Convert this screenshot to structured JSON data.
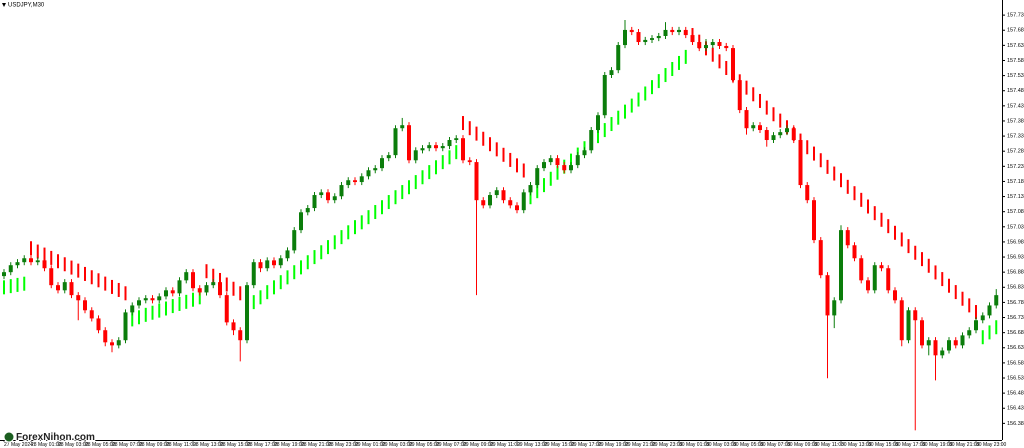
{
  "chart_data": {
    "type": "candlestick",
    "title": "USDJPY,M30",
    "watermark": "ForexNihon.com",
    "up_color": "#0b7d0b",
    "down_color": "#ff0000",
    "ylim": [
      156.33,
      157.785
    ],
    "yticks": [
      157.735,
      157.685,
      157.635,
      157.585,
      157.535,
      157.485,
      157.435,
      157.385,
      157.335,
      157.285,
      157.235,
      157.185,
      157.135,
      157.085,
      157.035,
      156.985,
      156.935,
      156.885,
      156.835,
      156.785,
      156.735,
      156.685,
      156.635,
      156.585,
      156.535,
      156.485,
      156.435,
      156.385
    ],
    "time_labels": [
      "27 May 2024",
      "28 May 01:00",
      "28 May 03:00",
      "28 May 05:00",
      "28 May 07:00",
      "28 May 09:00",
      "28 May 11:00",
      "28 May 13:00",
      "28 May 15:00",
      "28 May 17:00",
      "28 May 19:00",
      "28 May 21:00",
      "28 May 23:00",
      "29 May 01:00",
      "29 May 03:00",
      "29 May 05:00",
      "29 May 07:00",
      "29 May 09:00",
      "29 May 11:00",
      "29 May 13:00",
      "29 May 15:00",
      "29 May 17:00",
      "29 May 19:00",
      "29 May 21:00",
      "29 May 23:00",
      "30 May 01:00",
      "30 May 03:00",
      "30 May 05:00",
      "30 May 07:00",
      "30 May 09:00",
      "30 May 11:00",
      "30 May 13:00",
      "30 May 15:00",
      "30 May 17:00",
      "30 May 19:00",
      "30 May 21:00",
      "30 May 23:00"
    ],
    "ohlc": [
      [
        156.872,
        156.895,
        156.862,
        156.885
      ],
      [
        156.885,
        156.918,
        156.875,
        156.908
      ],
      [
        156.908,
        156.928,
        156.898,
        156.918
      ],
      [
        156.918,
        156.941,
        156.908,
        156.931
      ],
      [
        156.931,
        156.941,
        156.908,
        156.918
      ],
      [
        156.918,
        156.934,
        156.908,
        156.924
      ],
      [
        156.924,
        156.934,
        156.888,
        156.898
      ],
      [
        156.898,
        156.908,
        156.832,
        156.842
      ],
      [
        156.842,
        156.852,
        156.815,
        156.825
      ],
      [
        156.825,
        156.862,
        156.815,
        156.852
      ],
      [
        156.852,
        156.862,
        156.799,
        156.809
      ],
      [
        156.809,
        156.819,
        156.726,
        156.792
      ],
      [
        156.792,
        156.802,
        156.749,
        156.759
      ],
      [
        156.759,
        156.769,
        156.722,
        156.732
      ],
      [
        156.732,
        156.742,
        156.683,
        156.693
      ],
      [
        156.693,
        156.703,
        156.64,
        156.653
      ],
      [
        156.653,
        156.663,
        156.62,
        156.643
      ],
      [
        156.643,
        156.67,
        156.633,
        156.66
      ],
      [
        156.66,
        156.762,
        156.65,
        156.752
      ],
      [
        156.752,
        156.785,
        156.742,
        156.775
      ],
      [
        156.775,
        156.802,
        156.765,
        156.792
      ],
      [
        156.792,
        156.809,
        156.782,
        156.799
      ],
      [
        156.799,
        156.809,
        156.782,
        156.792
      ],
      [
        156.792,
        156.815,
        156.782,
        156.805
      ],
      [
        156.805,
        156.835,
        156.795,
        156.825
      ],
      [
        156.825,
        156.835,
        156.805,
        156.815
      ],
      [
        156.815,
        156.868,
        156.805,
        156.858
      ],
      [
        156.858,
        156.895,
        156.848,
        156.885
      ],
      [
        156.885,
        156.895,
        156.822,
        156.832
      ],
      [
        156.832,
        156.842,
        156.808,
        156.818
      ],
      [
        156.818,
        156.852,
        156.808,
        156.842
      ],
      [
        156.842,
        156.862,
        156.832,
        156.852
      ],
      [
        156.852,
        156.862,
        156.799,
        156.809
      ],
      [
        156.809,
        156.819,
        156.709,
        156.719
      ],
      [
        156.719,
        156.729,
        156.677,
        156.693
      ],
      [
        156.693,
        156.703,
        156.59,
        156.66
      ],
      [
        156.66,
        156.852,
        156.65,
        156.842
      ],
      [
        156.842,
        156.928,
        156.832,
        156.918
      ],
      [
        156.918,
        156.928,
        156.885,
        156.898
      ],
      [
        156.898,
        156.934,
        156.888,
        156.924
      ],
      [
        156.924,
        156.934,
        156.898,
        156.908
      ],
      [
        156.908,
        156.941,
        156.898,
        156.931
      ],
      [
        156.931,
        156.967,
        156.921,
        156.957
      ],
      [
        156.957,
        157.034,
        156.947,
        157.024
      ],
      [
        157.024,
        157.093,
        157.014,
        157.083
      ],
      [
        157.083,
        157.107,
        157.073,
        157.097
      ],
      [
        157.097,
        157.15,
        157.087,
        157.14
      ],
      [
        157.14,
        157.159,
        157.13,
        157.149
      ],
      [
        157.149,
        157.159,
        157.113,
        157.123
      ],
      [
        157.123,
        157.146,
        157.113,
        157.136
      ],
      [
        157.136,
        157.183,
        157.126,
        157.173
      ],
      [
        157.173,
        157.199,
        157.163,
        157.189
      ],
      [
        157.189,
        157.199,
        157.173,
        157.183
      ],
      [
        157.183,
        157.212,
        157.173,
        157.202
      ],
      [
        157.202,
        157.232,
        157.192,
        157.222
      ],
      [
        157.222,
        157.239,
        157.212,
        157.229
      ],
      [
        157.229,
        157.272,
        157.219,
        157.262
      ],
      [
        157.262,
        157.282,
        157.252,
        157.272
      ],
      [
        157.272,
        157.371,
        157.262,
        157.361
      ],
      [
        157.361,
        157.395,
        157.351,
        157.371
      ],
      [
        157.371,
        157.381,
        157.245,
        157.255
      ],
      [
        157.255,
        157.298,
        157.245,
        157.288
      ],
      [
        157.288,
        157.305,
        157.278,
        157.295
      ],
      [
        157.295,
        157.315,
        157.285,
        157.305
      ],
      [
        157.305,
        157.315,
        157.285,
        157.295
      ],
      [
        157.295,
        157.312,
        157.285,
        157.302
      ],
      [
        157.302,
        157.332,
        157.292,
        157.322
      ],
      [
        157.322,
        157.338,
        157.312,
        157.328
      ],
      [
        157.328,
        157.338,
        157.245,
        157.255
      ],
      [
        157.255,
        157.265,
        157.239,
        157.249
      ],
      [
        157.249,
        157.259,
        156.809,
        157.123
      ],
      [
        157.123,
        157.133,
        157.096,
        157.106
      ],
      [
        157.106,
        157.15,
        157.096,
        157.14
      ],
      [
        157.14,
        157.166,
        157.13,
        157.156
      ],
      [
        157.156,
        157.166,
        157.113,
        157.123
      ],
      [
        157.123,
        157.133,
        157.096,
        157.106
      ],
      [
        157.106,
        157.116,
        157.08,
        157.09
      ],
      [
        157.09,
        157.159,
        157.08,
        157.149
      ],
      [
        157.149,
        157.183,
        157.139,
        157.173
      ],
      [
        157.173,
        157.239,
        157.163,
        157.229
      ],
      [
        157.229,
        157.259,
        157.219,
        157.249
      ],
      [
        157.249,
        157.272,
        157.239,
        157.262
      ],
      [
        157.262,
        157.272,
        157.229,
        157.239
      ],
      [
        157.239,
        157.249,
        157.212,
        157.222
      ],
      [
        157.222,
        157.249,
        157.212,
        157.239
      ],
      [
        157.239,
        157.282,
        157.229,
        157.272
      ],
      [
        157.272,
        157.298,
        157.262,
        157.288
      ],
      [
        157.288,
        157.365,
        157.278,
        157.355
      ],
      [
        157.355,
        157.414,
        157.345,
        157.404
      ],
      [
        157.404,
        157.547,
        157.394,
        157.537
      ],
      [
        157.537,
        157.563,
        157.527,
        157.553
      ],
      [
        157.553,
        157.646,
        157.543,
        157.636
      ],
      [
        157.636,
        157.719,
        157.626,
        157.686
      ],
      [
        157.686,
        157.696,
        157.669,
        157.679
      ],
      [
        157.679,
        157.689,
        157.636,
        157.646
      ],
      [
        157.646,
        157.663,
        157.636,
        157.653
      ],
      [
        157.653,
        157.669,
        157.643,
        157.659
      ],
      [
        157.659,
        157.676,
        157.649,
        157.666
      ],
      [
        157.666,
        157.712,
        157.656,
        157.686
      ],
      [
        157.686,
        157.696,
        157.669,
        157.679
      ],
      [
        157.679,
        157.696,
        157.669,
        157.686
      ],
      [
        157.686,
        157.696,
        157.659,
        157.669
      ],
      [
        157.669,
        157.679,
        157.636,
        157.646
      ],
      [
        157.646,
        157.656,
        157.616,
        157.626
      ],
      [
        157.626,
        157.656,
        157.616,
        157.636
      ],
      [
        157.636,
        157.656,
        157.626,
        157.646
      ],
      [
        157.646,
        157.656,
        157.623,
        157.633
      ],
      [
        157.633,
        157.643,
        157.616,
        157.626
      ],
      [
        157.626,
        157.636,
        157.51,
        157.52
      ],
      [
        157.52,
        157.53,
        157.411,
        157.421
      ],
      [
        157.421,
        157.431,
        157.34,
        157.361
      ],
      [
        157.361,
        157.381,
        157.351,
        157.371
      ],
      [
        157.371,
        157.381,
        157.345,
        157.355
      ],
      [
        157.355,
        157.365,
        157.3,
        157.322
      ],
      [
        157.322,
        157.348,
        157.312,
        157.338
      ],
      [
        157.338,
        157.358,
        157.328,
        157.348
      ],
      [
        157.348,
        157.371,
        157.338,
        157.361
      ],
      [
        157.361,
        157.371,
        157.312,
        157.322
      ],
      [
        157.322,
        157.332,
        157.163,
        157.173
      ],
      [
        157.173,
        157.183,
        157.113,
        157.123
      ],
      [
        157.123,
        157.133,
        156.981,
        156.991
      ],
      [
        156.991,
        157.001,
        156.865,
        156.875
      ],
      [
        156.875,
        156.885,
        156.534,
        156.742
      ],
      [
        156.742,
        156.802,
        156.7,
        156.792
      ],
      [
        156.792,
        157.04,
        156.782,
        157.024
      ],
      [
        157.024,
        157.034,
        156.964,
        156.974
      ],
      [
        156.974,
        156.984,
        156.921,
        156.931
      ],
      [
        156.931,
        156.941,
        156.848,
        156.858
      ],
      [
        156.858,
        156.868,
        156.815,
        156.825
      ],
      [
        156.825,
        156.918,
        156.815,
        156.908
      ],
      [
        156.908,
        156.918,
        156.888,
        156.898
      ],
      [
        156.898,
        156.908,
        156.815,
        156.825
      ],
      [
        156.825,
        156.835,
        156.782,
        156.792
      ],
      [
        156.792,
        156.802,
        156.64,
        156.66
      ],
      [
        156.66,
        156.769,
        156.65,
        156.759
      ],
      [
        156.759,
        156.769,
        156.362,
        156.726
      ],
      [
        156.726,
        156.736,
        156.633,
        156.643
      ],
      [
        156.643,
        156.67,
        156.61,
        156.66
      ],
      [
        156.66,
        156.67,
        156.527,
        156.61
      ],
      [
        156.61,
        156.636,
        156.6,
        156.626
      ],
      [
        156.626,
        156.67,
        156.616,
        156.66
      ],
      [
        156.66,
        156.67,
        156.633,
        156.643
      ],
      [
        156.643,
        156.686,
        156.633,
        156.676
      ],
      [
        156.676,
        156.703,
        156.666,
        156.693
      ],
      [
        156.693,
        156.736,
        156.683,
        156.726
      ],
      [
        156.726,
        156.752,
        156.716,
        156.742
      ],
      [
        156.742,
        156.785,
        156.732,
        156.775
      ],
      [
        156.775,
        156.829,
        156.765,
        156.809
      ]
    ],
    "indicator": {
      "up": {
        "color": "#00ff00",
        "values": [
          156.858,
          156.862,
          156.866,
          156.87,
          null,
          null,
          null,
          null,
          null,
          null,
          null,
          null,
          null,
          null,
          null,
          null,
          null,
          null,
          null,
          156.752,
          156.759,
          156.767,
          156.774,
          156.781,
          156.788,
          156.796,
          156.803,
          156.81,
          156.817,
          156.825,
          null,
          null,
          null,
          null,
          null,
          null,
          156.792,
          156.809,
          156.825,
          156.842,
          156.858,
          156.875,
          156.891,
          156.908,
          156.924,
          156.941,
          156.958,
          156.974,
          156.991,
          157.007,
          157.024,
          157.04,
          157.057,
          157.073,
          157.09,
          157.107,
          157.123,
          157.14,
          157.156,
          157.173,
          157.189,
          157.206,
          157.222,
          157.239,
          157.255,
          157.272,
          157.288,
          157.305,
          null,
          null,
          null,
          null,
          null,
          null,
          null,
          null,
          null,
          null,
          157.156,
          157.176,
          157.196,
          157.217,
          157.237,
          157.257,
          157.277,
          157.297,
          157.318,
          157.338,
          157.358,
          157.378,
          157.398,
          157.419,
          157.439,
          157.459,
          157.479,
          157.499,
          157.52,
          157.54,
          157.56,
          157.58,
          157.6,
          157.62,
          null,
          null,
          null,
          null,
          null,
          null,
          null,
          null,
          null,
          null,
          null,
          null,
          null,
          null,
          null,
          null,
          null,
          null,
          null,
          null,
          null,
          null,
          null,
          null,
          null,
          null,
          null,
          null,
          null,
          null,
          null,
          null,
          null,
          null,
          null,
          null,
          null,
          null,
          null,
          null,
          null,
          null,
          null,
          156.693,
          156.709,
          156.726
        ]
      },
      "down": {
        "color": "#ff0000",
        "values": [
          null,
          null,
          null,
          null,
          156.941,
          156.93,
          156.92,
          156.909,
          156.898,
          156.888,
          156.877,
          156.867,
          156.856,
          156.845,
          156.835,
          156.824,
          156.813,
          156.803,
          156.792,
          null,
          null,
          null,
          null,
          null,
          null,
          null,
          null,
          null,
          null,
          null,
          156.865,
          156.85,
          156.836,
          156.821,
          156.807,
          156.792,
          null,
          null,
          null,
          null,
          null,
          null,
          null,
          null,
          null,
          null,
          null,
          null,
          null,
          null,
          null,
          null,
          null,
          null,
          null,
          null,
          null,
          null,
          null,
          null,
          null,
          null,
          null,
          null,
          null,
          null,
          null,
          null,
          157.355,
          157.338,
          157.32,
          157.303,
          157.285,
          157.268,
          157.25,
          157.233,
          157.215,
          157.198,
          null,
          null,
          null,
          null,
          null,
          null,
          null,
          null,
          null,
          null,
          null,
          null,
          null,
          null,
          null,
          null,
          null,
          null,
          null,
          null,
          null,
          null,
          null,
          null,
          157.646,
          157.624,
          157.602,
          157.581,
          157.559,
          157.537,
          157.515,
          157.493,
          157.472,
          157.45,
          157.428,
          157.406,
          157.384,
          157.363,
          157.341,
          157.319,
          157.297,
          157.275,
          157.254,
          157.232,
          157.21,
          157.188,
          157.166,
          157.144,
          157.123,
          157.101,
          157.079,
          157.057,
          157.035,
          157.014,
          156.992,
          156.97,
          156.948,
          156.926,
          156.905,
          156.883,
          156.861,
          156.839,
          156.817,
          156.796,
          156.774,
          156.752,
          156.73,
          null,
          null,
          null
        ]
      }
    }
  }
}
